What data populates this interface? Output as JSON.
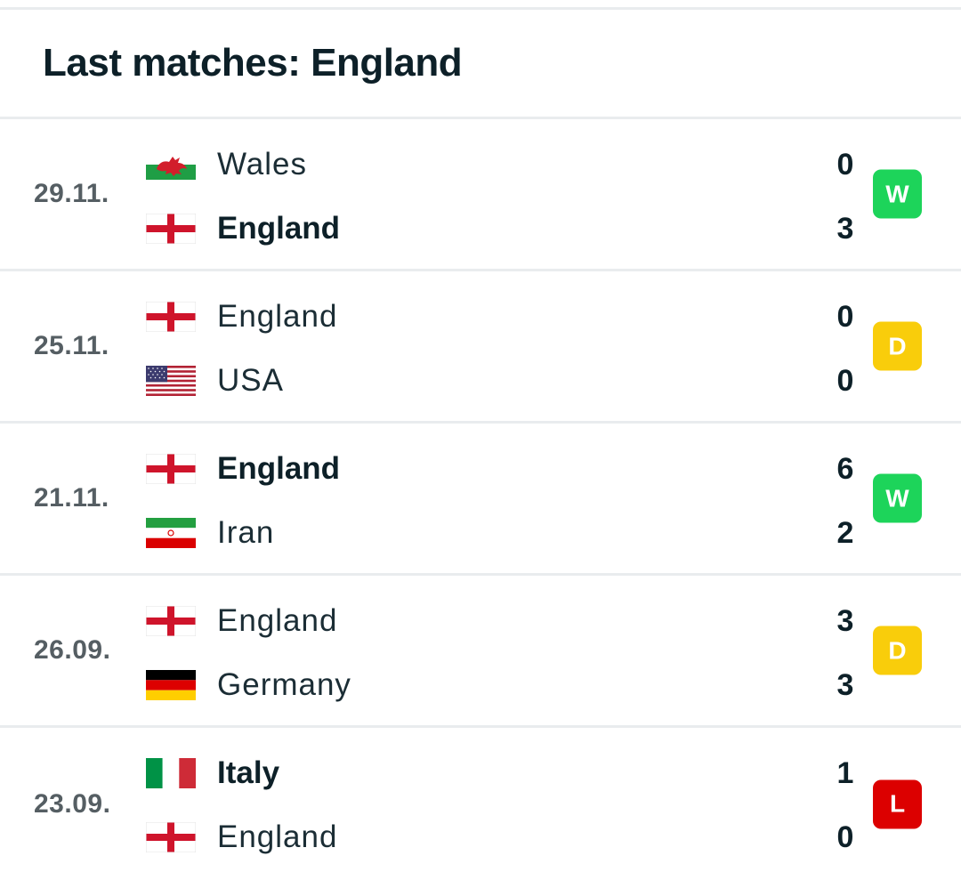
{
  "header": {
    "title": "Last matches: England"
  },
  "colors": {
    "win": "#1dd45a",
    "draw": "#f9cd0b",
    "loss": "#dc0000"
  },
  "matches": [
    {
      "date": "29.11.",
      "home": {
        "name": "Wales",
        "flag": "wales-flag-icon",
        "score": "0",
        "winner": false
      },
      "away": {
        "name": "England",
        "flag": "england-flag-icon",
        "score": "3",
        "winner": true
      },
      "result": "W"
    },
    {
      "date": "25.11.",
      "home": {
        "name": "England",
        "flag": "england-flag-icon",
        "score": "0",
        "winner": false
      },
      "away": {
        "name": "USA",
        "flag": "usa-flag-icon",
        "score": "0",
        "winner": false
      },
      "result": "D"
    },
    {
      "date": "21.11.",
      "home": {
        "name": "England",
        "flag": "england-flag-icon",
        "score": "6",
        "winner": true
      },
      "away": {
        "name": "Iran",
        "flag": "iran-flag-icon",
        "score": "2",
        "winner": false
      },
      "result": "W"
    },
    {
      "date": "26.09.",
      "home": {
        "name": "England",
        "flag": "england-flag-icon",
        "score": "3",
        "winner": false
      },
      "away": {
        "name": "Germany",
        "flag": "germany-flag-icon",
        "score": "3",
        "winner": false
      },
      "result": "D"
    },
    {
      "date": "23.09.",
      "home": {
        "name": "Italy",
        "flag": "italy-flag-icon",
        "score": "1",
        "winner": true
      },
      "away": {
        "name": "England",
        "flag": "england-flag-icon",
        "score": "0",
        "winner": false
      },
      "result": "L"
    }
  ]
}
